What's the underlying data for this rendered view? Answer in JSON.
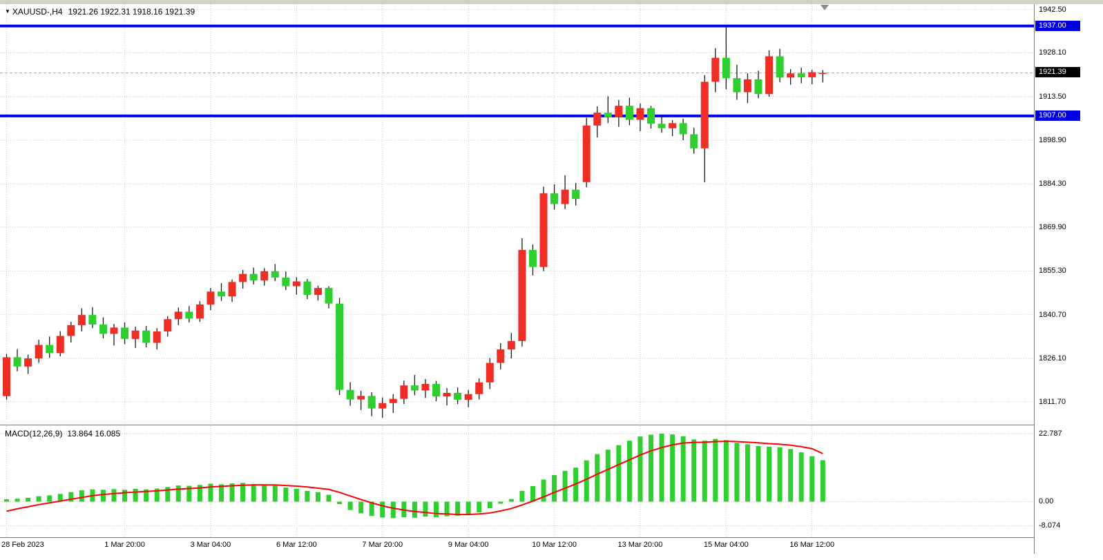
{
  "header": {
    "collapse_icon": "▼",
    "symbol_period": "XAUUSD-,H4",
    "ohlc": "1921.26 1922.31 1918.16 1921.39"
  },
  "indicator": {
    "name": "MACD(12,26,9)",
    "values": "13.864 16.085"
  },
  "chart_data": {
    "type": "candlestick",
    "symbol": "XAUUSD-",
    "timeframe": "H4",
    "y_range": [
      1804.0,
      1944.3
    ],
    "y_ticks": [
      {
        "value": 1942.5,
        "label": "1942.50"
      },
      {
        "value": 1928.1,
        "label": "1928.10"
      },
      {
        "value": 1913.5,
        "label": "1913.50"
      },
      {
        "value": 1898.9,
        "label": "1898.90"
      },
      {
        "value": 1884.3,
        "label": "1884.30"
      },
      {
        "value": 1869.9,
        "label": "1869.90"
      },
      {
        "value": 1855.3,
        "label": "1855.30"
      },
      {
        "value": 1840.7,
        "label": "1840.70"
      },
      {
        "value": 1826.1,
        "label": "1826.10"
      },
      {
        "value": 1811.7,
        "label": "1811.70"
      }
    ],
    "x_ticks": [
      {
        "i": 0,
        "label": "28 Feb 2023"
      },
      {
        "i": 11,
        "label": "1 Mar 20:00"
      },
      {
        "i": 19,
        "label": "3 Mar 04:00"
      },
      {
        "i": 27,
        "label": "6 Mar 12:00"
      },
      {
        "i": 35,
        "label": "7 Mar 20:00"
      },
      {
        "i": 43,
        "label": "9 Mar 04:00"
      },
      {
        "i": 51,
        "label": "10 Mar 12:00"
      },
      {
        "i": 59,
        "label": "13 Mar 20:00"
      },
      {
        "i": 67,
        "label": "15 Mar 04:00"
      },
      {
        "i": 75,
        "label": "16 Mar 12:00"
      }
    ],
    "hlines": [
      {
        "price": 1937.0,
        "label": "1937.00"
      },
      {
        "price": 1907.0,
        "label": "1907.00"
      }
    ],
    "current_price": {
      "price": 1921.39,
      "label": "1921.39"
    },
    "candles": [
      [
        1813.5,
        1827.6,
        1812.4,
        1826.5
      ],
      [
        1826.5,
        1829.2,
        1821.8,
        1823.4
      ],
      [
        1823.4,
        1827.4,
        1820.9,
        1826.1
      ],
      [
        1826.1,
        1832.3,
        1824.6,
        1830.6
      ],
      [
        1830.6,
        1833.4,
        1826.3,
        1827.9
      ],
      [
        1827.9,
        1835.2,
        1826.8,
        1833.6
      ],
      [
        1833.6,
        1838.3,
        1831.4,
        1837.2
      ],
      [
        1837.2,
        1842.8,
        1835.1,
        1840.6
      ],
      [
        1840.6,
        1843.2,
        1836.2,
        1837.4
      ],
      [
        1837.4,
        1839.8,
        1832.8,
        1834.3
      ],
      [
        1834.3,
        1837.6,
        1830.4,
        1836.4
      ],
      [
        1836.4,
        1838.1,
        1830.9,
        1832.6
      ],
      [
        1832.6,
        1836.7,
        1829.6,
        1835.4
      ],
      [
        1835.4,
        1836.9,
        1829.8,
        1831.3
      ],
      [
        1831.3,
        1836.2,
        1829.1,
        1835.1
      ],
      [
        1835.1,
        1840.2,
        1833.4,
        1839.2
      ],
      [
        1839.2,
        1843.1,
        1837.2,
        1841.7
      ],
      [
        1841.7,
        1843.6,
        1838.1,
        1839.4
      ],
      [
        1839.4,
        1845.2,
        1838.3,
        1844.1
      ],
      [
        1844.1,
        1849.6,
        1842.2,
        1848.4
      ],
      [
        1848.4,
        1851.2,
        1845.3,
        1846.8
      ],
      [
        1846.8,
        1852.4,
        1844.9,
        1851.6
      ],
      [
        1851.6,
        1855.6,
        1849.4,
        1854.3
      ],
      [
        1854.3,
        1856.4,
        1850.8,
        1852.1
      ],
      [
        1852.1,
        1856.2,
        1850.4,
        1855.2
      ],
      [
        1855.2,
        1857.6,
        1851.9,
        1853.1
      ],
      [
        1853.1,
        1855.1,
        1848.9,
        1850.2
      ],
      [
        1850.2,
        1853.2,
        1847.4,
        1851.8
      ],
      [
        1851.8,
        1852.6,
        1845.9,
        1847.3
      ],
      [
        1847.3,
        1850.4,
        1845.4,
        1849.6
      ],
      [
        1849.6,
        1850.2,
        1842.8,
        1844.4
      ],
      [
        1844.4,
        1846.3,
        1813.9,
        1815.6
      ],
      [
        1815.6,
        1818.2,
        1810.3,
        1812.4
      ],
      [
        1812.4,
        1815.3,
        1808.9,
        1813.6
      ],
      [
        1813.6,
        1814.8,
        1806.8,
        1809.4
      ],
      [
        1809.4,
        1813.1,
        1806.3,
        1811.2
      ],
      [
        1811.2,
        1814.2,
        1807.9,
        1812.6
      ],
      [
        1812.6,
        1818.7,
        1810.9,
        1817.1
      ],
      [
        1817.1,
        1820.6,
        1813.8,
        1815.4
      ],
      [
        1815.4,
        1819.2,
        1812.9,
        1817.6
      ],
      [
        1817.6,
        1818.6,
        1811.8,
        1813.4
      ],
      [
        1813.4,
        1816.2,
        1810.4,
        1814.6
      ],
      [
        1814.6,
        1816.4,
        1810.9,
        1812.3
      ],
      [
        1812.3,
        1815.6,
        1809.8,
        1814.2
      ],
      [
        1814.2,
        1819.4,
        1812.4,
        1818.1
      ],
      [
        1818.1,
        1826.2,
        1815.9,
        1824.6
      ],
      [
        1824.6,
        1831.2,
        1822.4,
        1829.1
      ],
      [
        1829.1,
        1834.6,
        1826.1,
        1831.9
      ],
      [
        1831.9,
        1866.2,
        1830.1,
        1862.3
      ],
      [
        1862.3,
        1864.1,
        1853.8,
        1856.6
      ],
      [
        1856.6,
        1883.4,
        1855.2,
        1881.2
      ],
      [
        1881.2,
        1884.2,
        1875.8,
        1877.6
      ],
      [
        1877.6,
        1887.2,
        1875.9,
        1882.4
      ],
      [
        1882.4,
        1884.6,
        1877.1,
        1879.3
      ],
      [
        1884.9,
        1906.4,
        1883.2,
        1903.8
      ],
      [
        1903.8,
        1910.2,
        1899.8,
        1908.1
      ],
      [
        1908.1,
        1913.6,
        1904.6,
        1906.6
      ],
      [
        1906.6,
        1912.3,
        1903.4,
        1910.4
      ],
      [
        1910.4,
        1913.1,
        1903.9,
        1905.7
      ],
      [
        1905.7,
        1911.2,
        1901.9,
        1909.6
      ],
      [
        1909.6,
        1910.4,
        1902.8,
        1904.4
      ],
      [
        1904.4,
        1907.2,
        1901.4,
        1902.9
      ],
      [
        1902.9,
        1905.6,
        1900.3,
        1904.6
      ],
      [
        1904.6,
        1906.1,
        1898.9,
        1900.9
      ],
      [
        1900.9,
        1903.1,
        1894.4,
        1896.2
      ],
      [
        1896.2,
        1920.6,
        1884.9,
        1918.4
      ],
      [
        1918.4,
        1929.6,
        1914.9,
        1926.4
      ],
      [
        1926.4,
        1936.6,
        1915.9,
        1919.6
      ],
      [
        1919.6,
        1924.1,
        1912.4,
        1914.9
      ],
      [
        1914.9,
        1921.2,
        1911.3,
        1919.2
      ],
      [
        1919.2,
        1922.1,
        1912.9,
        1914.3
      ],
      [
        1914.3,
        1928.9,
        1913.4,
        1926.9
      ],
      [
        1926.9,
        1929.4,
        1918.3,
        1919.8
      ],
      [
        1919.8,
        1922.6,
        1917.4,
        1921.2
      ],
      [
        1921.2,
        1923.1,
        1917.9,
        1919.9
      ],
      [
        1919.9,
        1922.4,
        1917.6,
        1921.6
      ],
      [
        1921.26,
        1922.31,
        1918.16,
        1921.39
      ]
    ],
    "macd": {
      "params": "12,26,9",
      "current_main": 13.864,
      "current_signal": 16.085,
      "y_range": [
        -11.9,
        25.3
      ],
      "y_ticks": [
        {
          "value": 22.787,
          "label": "22.787"
        },
        {
          "value": 0,
          "label": "0.00"
        },
        {
          "value": -8.074,
          "label": "-8.074"
        }
      ],
      "main": [
        0.8,
        1.0,
        1.3,
        1.8,
        2.1,
        2.6,
        3.2,
        3.8,
        4.1,
        4.0,
        4.2,
        4.0,
        4.3,
        4.1,
        4.4,
        4.9,
        5.4,
        5.3,
        5.6,
        6.0,
        5.8,
        6.1,
        6.3,
        5.9,
        5.8,
        5.4,
        4.7,
        4.3,
        3.6,
        3.2,
        2.3,
        -0.8,
        -2.8,
        -3.9,
        -4.8,
        -5.3,
        -5.5,
        -5.2,
        -5.4,
        -5.0,
        -5.2,
        -4.9,
        -4.7,
        -4.4,
        -3.6,
        -2.2,
        -0.7,
        0.9,
        3.6,
        5.2,
        7.4,
        8.9,
        10.3,
        11.4,
        13.8,
        15.9,
        17.4,
        18.9,
        20.4,
        21.8,
        22.4,
        22.787,
        22.5,
        21.9,
        20.8,
        20.4,
        21.0,
        20.6,
        19.7,
        19.2,
        18.6,
        18.4,
        18.2,
        17.6,
        16.5,
        15.2,
        13.864
      ],
      "signal": [
        -3.2,
        -2.4,
        -1.7,
        -1.0,
        -0.4,
        0.2,
        0.8,
        1.4,
        2.0,
        2.4,
        2.7,
        3.0,
        3.2,
        3.4,
        3.6,
        3.9,
        4.2,
        4.4,
        4.6,
        4.9,
        5.1,
        5.3,
        5.5,
        5.6,
        5.6,
        5.6,
        5.4,
        5.2,
        4.9,
        4.5,
        4.1,
        3.1,
        1.9,
        0.7,
        -0.4,
        -1.4,
        -2.2,
        -2.8,
        -3.3,
        -3.6,
        -4.0,
        -4.1,
        -4.3,
        -4.3,
        -4.1,
        -3.8,
        -3.1,
        -2.3,
        -1.1,
        0.2,
        1.6,
        3.1,
        4.5,
        5.9,
        7.5,
        9.2,
        10.8,
        12.4,
        14.0,
        15.6,
        17.0,
        18.1,
        19.0,
        19.6,
        19.8,
        19.9,
        20.1,
        20.2,
        20.1,
        19.9,
        19.7,
        19.4,
        19.2,
        18.9,
        18.4,
        17.7,
        16.085
      ]
    },
    "colors": {
      "bull": "#ee2e24",
      "bear": "#2fcf2f",
      "wick": "#1a1a1a",
      "grid": "#c8c8c8",
      "hline": "#0000f0",
      "macd_bar": "#2fcf2f",
      "macd_signal": "#ff0000",
      "current_line": "#aaaaaa",
      "level_box_bg": "#0000e0",
      "price_box_bg": "#000000"
    }
  }
}
